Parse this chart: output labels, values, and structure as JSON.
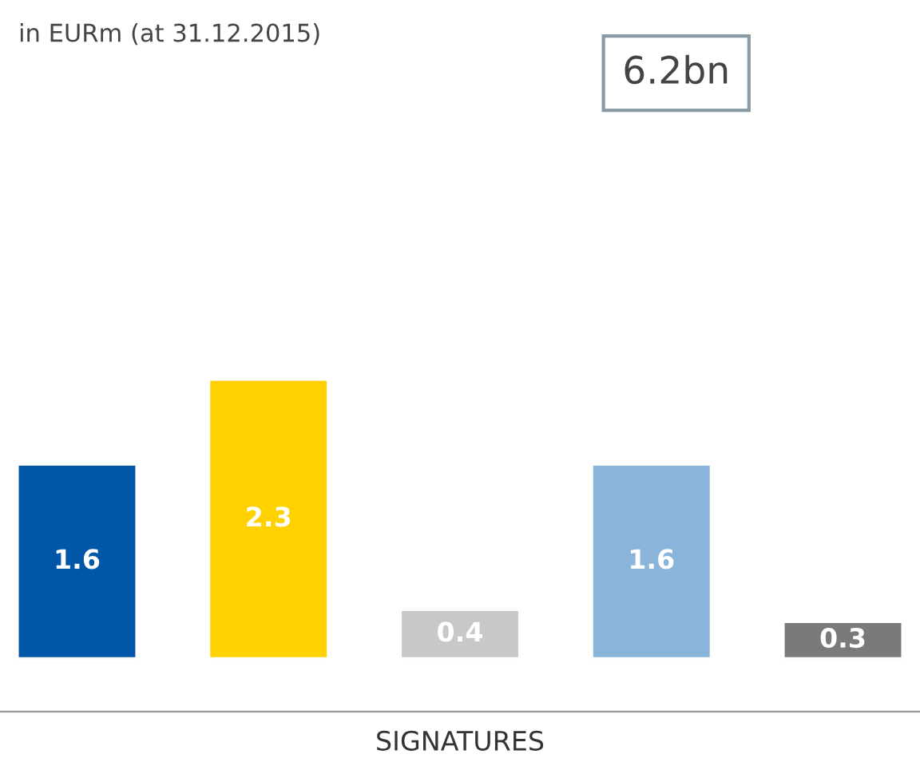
{
  "chart_data": {
    "type": "bar",
    "subtitle": "in EURm (at 31.12.2015)",
    "xlabel": "SIGNATURES",
    "categories": [
      null,
      null,
      null,
      null,
      null
    ],
    "values": [
      1.6,
      2.3,
      0.4,
      1.6,
      0.3
    ],
    "colors": [
      "#0057a8",
      "#ffd100",
      "#c8c8c8",
      "#8ab4d9",
      "#7a7a7a"
    ],
    "data_labels": true,
    "annotations": [
      "6.2bn"
    ]
  }
}
